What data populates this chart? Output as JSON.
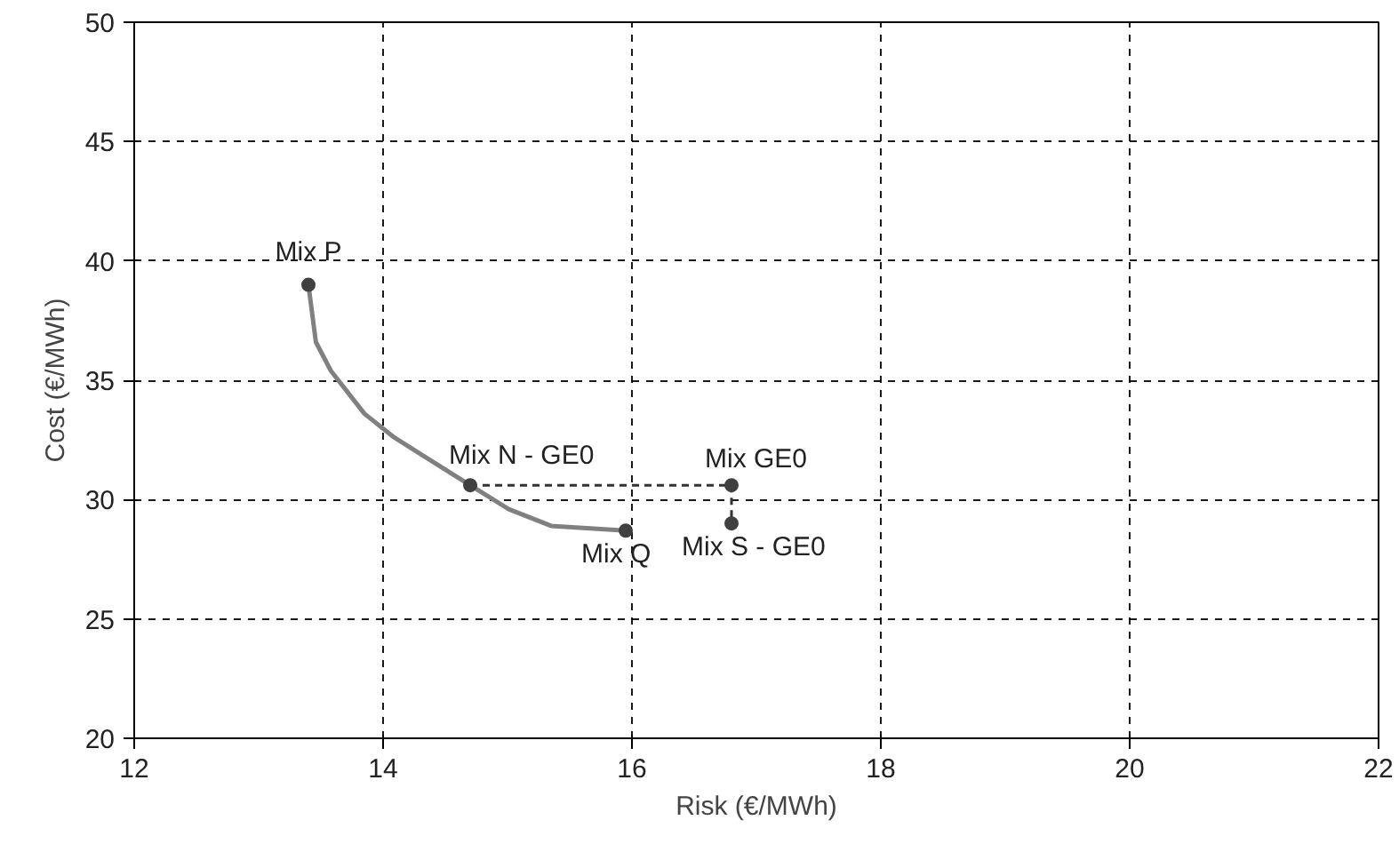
{
  "chart_data": {
    "type": "line",
    "xlabel": "Risk (€/MWh)",
    "ylabel": "Cost (€/MWh)",
    "xlim": [
      12,
      22
    ],
    "xticks": [
      12,
      14,
      16,
      18,
      20,
      22
    ],
    "ylim": [
      20,
      50
    ],
    "yticks": [
      20,
      25,
      30,
      35,
      40,
      45,
      50
    ],
    "grid": true,
    "series": [
      {
        "color": "#808080",
        "marker": "none",
        "line_style": "solid",
        "x": [
          13.4,
          13.46,
          13.58,
          13.85,
          14.09,
          14.7,
          15.01,
          15.35,
          15.95
        ],
        "values": [
          39.0,
          36.6,
          35.4,
          33.6,
          32.6,
          30.6,
          29.6,
          28.9,
          28.7
        ]
      },
      {
        "color": "#333333",
        "marker": "none",
        "line_style": "dashed",
        "x": [
          14.7,
          16.8,
          16.8
        ],
        "values": [
          30.6,
          30.6,
          29.0
        ]
      },
      {
        "type": "scatter",
        "color": "#404040",
        "marker": "circle",
        "x": [
          13.4,
          14.7,
          15.95,
          16.8,
          16.8
        ],
        "values": [
          39.0,
          30.6,
          28.7,
          30.6,
          29.0
        ]
      }
    ],
    "annotations": [
      {
        "text": "Mix P",
        "x": 13.4,
        "y": 39.0
      },
      {
        "text": "Mix N - GE0",
        "x": 14.7,
        "y": 30.6
      },
      {
        "text": "Mix Q",
        "x": 15.95,
        "y": 28.7
      },
      {
        "text": "Mix GE0",
        "x": 16.8,
        "y": 30.6
      },
      {
        "text": "Mix S - GE0",
        "x": 16.8,
        "y": 29.0
      }
    ]
  }
}
